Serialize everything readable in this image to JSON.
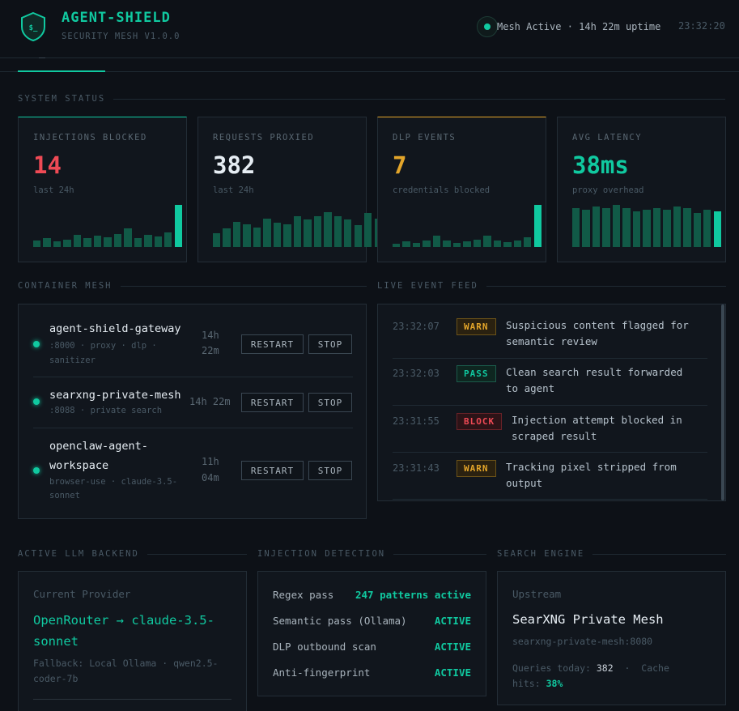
{
  "app": {
    "title": "AGENT-SHIELD",
    "subtitle": "SECURITY MESH V1.0.0",
    "status": "Mesh Active · 14h 22m uptime",
    "clock": "23:32:20",
    "accent": "#10c9a0"
  },
  "sections": {
    "system_status": "SYSTEM STATUS",
    "container_mesh": "CONTAINER MESH",
    "live_event_feed": "LIVE EVENT FEED",
    "active_llm_backend": "ACTIVE LLM BACKEND",
    "injection_detection": "INJECTION DETECTION",
    "search_engine": "SEARCH ENGINE"
  },
  "stats": [
    {
      "label": "INJECTIONS BLOCKED",
      "value": "14",
      "sub": "last 24h",
      "color": "#ef4a55",
      "bars": [
        8,
        11,
        7,
        9,
        15,
        11,
        14,
        12,
        16,
        23,
        11,
        15,
        13,
        18,
        52
      ]
    },
    {
      "label": "REQUESTS PROXIED",
      "value": "382",
      "sub": "last 24h",
      "color": "#e6edf3",
      "bars": [
        17,
        23,
        31,
        28,
        24,
        35,
        30,
        28,
        38,
        34,
        38,
        43,
        38,
        34,
        27,
        42,
        35,
        53
      ]
    },
    {
      "label": "DLP EVENTS",
      "value": "7",
      "sub": "credentials blocked",
      "color": "#e3a52a",
      "bars": [
        4,
        7,
        5,
        8,
        14,
        8,
        5,
        7,
        9,
        14,
        8,
        6,
        8,
        12,
        52
      ]
    },
    {
      "label": "AVG LATENCY",
      "value": "38ms",
      "sub": "proxy overhead",
      "color": "#10c9a0",
      "bars": [
        48,
        46,
        50,
        48,
        52,
        48,
        44,
        46,
        48,
        46,
        50,
        48,
        42,
        46,
        44
      ]
    }
  ],
  "containers": [
    {
      "name": "agent-shield-gateway",
      "meta": [
        ":8000 · proxy · dlp ·",
        "sanitizer"
      ],
      "uptime": [
        "14h",
        "22m"
      ],
      "restart": "RESTART",
      "stop": "STOP"
    },
    {
      "name": "searxng-private-mesh",
      "meta": [
        ":8088 · private search"
      ],
      "uptime": [
        "14h 22m"
      ],
      "restart": "RESTART",
      "stop": "STOP"
    },
    {
      "name": [
        "openclaw-agent-",
        "workspace"
      ],
      "meta": [
        "browser-use · claude-3.5-",
        "sonnet"
      ],
      "uptime": [
        "11h",
        "04m"
      ],
      "restart": "RESTART",
      "stop": "STOP"
    }
  ],
  "events": [
    {
      "time": "23:32:07",
      "level": "WARN",
      "text": [
        "Suspicious content flagged for",
        "semantic review"
      ]
    },
    {
      "time": "23:32:03",
      "level": "PASS",
      "text": [
        "Clean search result forwarded",
        "to agent"
      ]
    },
    {
      "time": "23:31:55",
      "level": "BLOCK",
      "text": [
        "Injection attempt blocked in",
        "scraped result"
      ]
    },
    {
      "time": "23:31:43",
      "level": "WARN",
      "text": [
        "Tracking pixel stripped from",
        "output"
      ]
    }
  ],
  "llm": {
    "label": "Current Provider",
    "provider": [
      "OpenRouter → claude-3.5-",
      "sonnet"
    ],
    "fallback": [
      "Fallback: Local Ollama · qwen2.5-",
      "coder-7b"
    ]
  },
  "detection": [
    {
      "name": "Regex pass",
      "value": "247 patterns active"
    },
    {
      "name": "Semantic pass (Ollama)",
      "value": "ACTIVE"
    },
    {
      "name": "DLP outbound scan",
      "value": "ACTIVE"
    },
    {
      "name": "Anti-fingerprint",
      "value": "ACTIVE"
    }
  ],
  "search": {
    "label": "Upstream",
    "name": "SearXNG Private Mesh",
    "host": "searxng-private-mesh:8080",
    "queries_label": "Queries today:",
    "queries": "382",
    "cache_label": "Cache",
    "hits_label": "hits:",
    "hits": "38%"
  }
}
